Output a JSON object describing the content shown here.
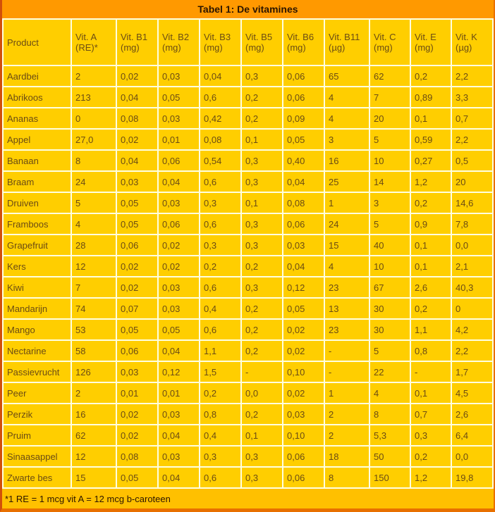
{
  "title": "Tabel 1: De vitamines",
  "footnote": "*1 RE = 1 mcg vit A = 12 mcg b-caroteen",
  "colors": {
    "page_bg": "#FF9900",
    "cell_bg": "#FFCE00",
    "gridline": "#FFFFE0",
    "footer_bg": "#FFC000",
    "bottom_border": "#E87000",
    "text": "#6B4C14",
    "title_text": "#2B1500"
  },
  "table": {
    "columns": [
      "Product",
      "Vit. A (RE)*",
      "Vit. B1 (mg)",
      "Vit. B2 (mg)",
      "Vit. B3 (mg)",
      "Vit. B5 (mg)",
      "Vit. B6 (mg)",
      "Vit. B11 (µg)",
      "Vit. C (mg)",
      "Vit. E (mg)",
      "Vit. K (µg)"
    ],
    "rows": [
      [
        "Aardbei",
        "2",
        "0,02",
        "0,03",
        "0,04",
        "0,3",
        "0,06",
        "65",
        "62",
        "0,2",
        "2,2"
      ],
      [
        "Abrikoos",
        "213",
        "0,04",
        "0,05",
        "0,6",
        "0,2",
        "0,06",
        "4",
        "7",
        "0,89",
        "3,3"
      ],
      [
        "Ananas",
        "0",
        "0,08",
        "0,03",
        "0,42",
        "0,2",
        "0,09",
        "4",
        "20",
        "0,1",
        "0,7"
      ],
      [
        "Appel",
        "27,0",
        "0,02",
        "0,01",
        "0,08",
        "0,1",
        "0,05",
        "3",
        "5",
        "0,59",
        "2,2"
      ],
      [
        "Banaan",
        "8",
        "0,04",
        "0,06",
        "0,54",
        "0,3",
        "0,40",
        "16",
        "10",
        "0,27",
        "0,5"
      ],
      [
        "Braam",
        "24",
        "0,03",
        "0,04",
        "0,6",
        "0,3",
        "0,04",
        "25",
        "14",
        "1,2",
        "20"
      ],
      [
        "Druiven",
        "5",
        "0,05",
        "0,03",
        "0,3",
        "0,1",
        "0,08",
        "1",
        "3",
        "0,2",
        "14,6"
      ],
      [
        "Framboos",
        "4",
        "0,05",
        "0,06",
        "0,6",
        "0,3",
        "0,06",
        "24",
        "5",
        "0,9",
        "7,8"
      ],
      [
        "Grapefruit",
        "28",
        "0,06",
        "0,02",
        "0,3",
        "0,3",
        "0,03",
        "15",
        "40",
        "0,1",
        "0,0"
      ],
      [
        "Kers",
        "12",
        "0,02",
        "0,02",
        "0,2",
        "0,2",
        "0,04",
        "4",
        "10",
        "0,1",
        "2,1"
      ],
      [
        "Kiwi",
        "7",
        "0,02",
        "0,03",
        "0,6",
        "0,3",
        "0,12",
        "23",
        "67",
        "2,6",
        "40,3"
      ],
      [
        "Mandarijn",
        "74",
        "0,07",
        "0,03",
        "0,4",
        "0,2",
        "0,05",
        "13",
        "30",
        "0,2",
        "0"
      ],
      [
        "Mango",
        "53",
        "0,05",
        "0,05",
        "0,6",
        "0,2",
        "0,02",
        "23",
        "30",
        "1,1",
        "4,2"
      ],
      [
        "Nectarine",
        "58",
        "0,06",
        "0,04",
        "1,1",
        "0,2",
        "0,02",
        "-",
        "5",
        "0,8",
        "2,2"
      ],
      [
        "Passievrucht",
        "126",
        "0,03",
        "0,12",
        "1,5",
        "-",
        "0,10",
        "-",
        "22",
        "-",
        "1,7"
      ],
      [
        "Peer",
        "2",
        "0,01",
        "0,01",
        "0,2",
        "0,0",
        "0,02",
        "1",
        "4",
        "0,1",
        "4,5"
      ],
      [
        "Perzik",
        "16",
        "0,02",
        "0,03",
        "0,8",
        "0,2",
        "0,03",
        "2",
        "8",
        "0,7",
        "2,6"
      ],
      [
        "Pruim",
        "62",
        "0,02",
        "0,04",
        "0,4",
        "0,1",
        "0,10",
        "2",
        "5,3",
        "0,3",
        "6,4"
      ],
      [
        "Sinaasappel",
        "12",
        "0,08",
        "0,03",
        "0,3",
        "0,3",
        "0,06",
        "18",
        "50",
        "0,2",
        "0,0"
      ],
      [
        "Zwarte bes",
        "15",
        "0,05",
        "0,04",
        "0,6",
        "0,3",
        "0,06",
        "8",
        "150",
        "1,2",
        "19,8"
      ]
    ]
  }
}
